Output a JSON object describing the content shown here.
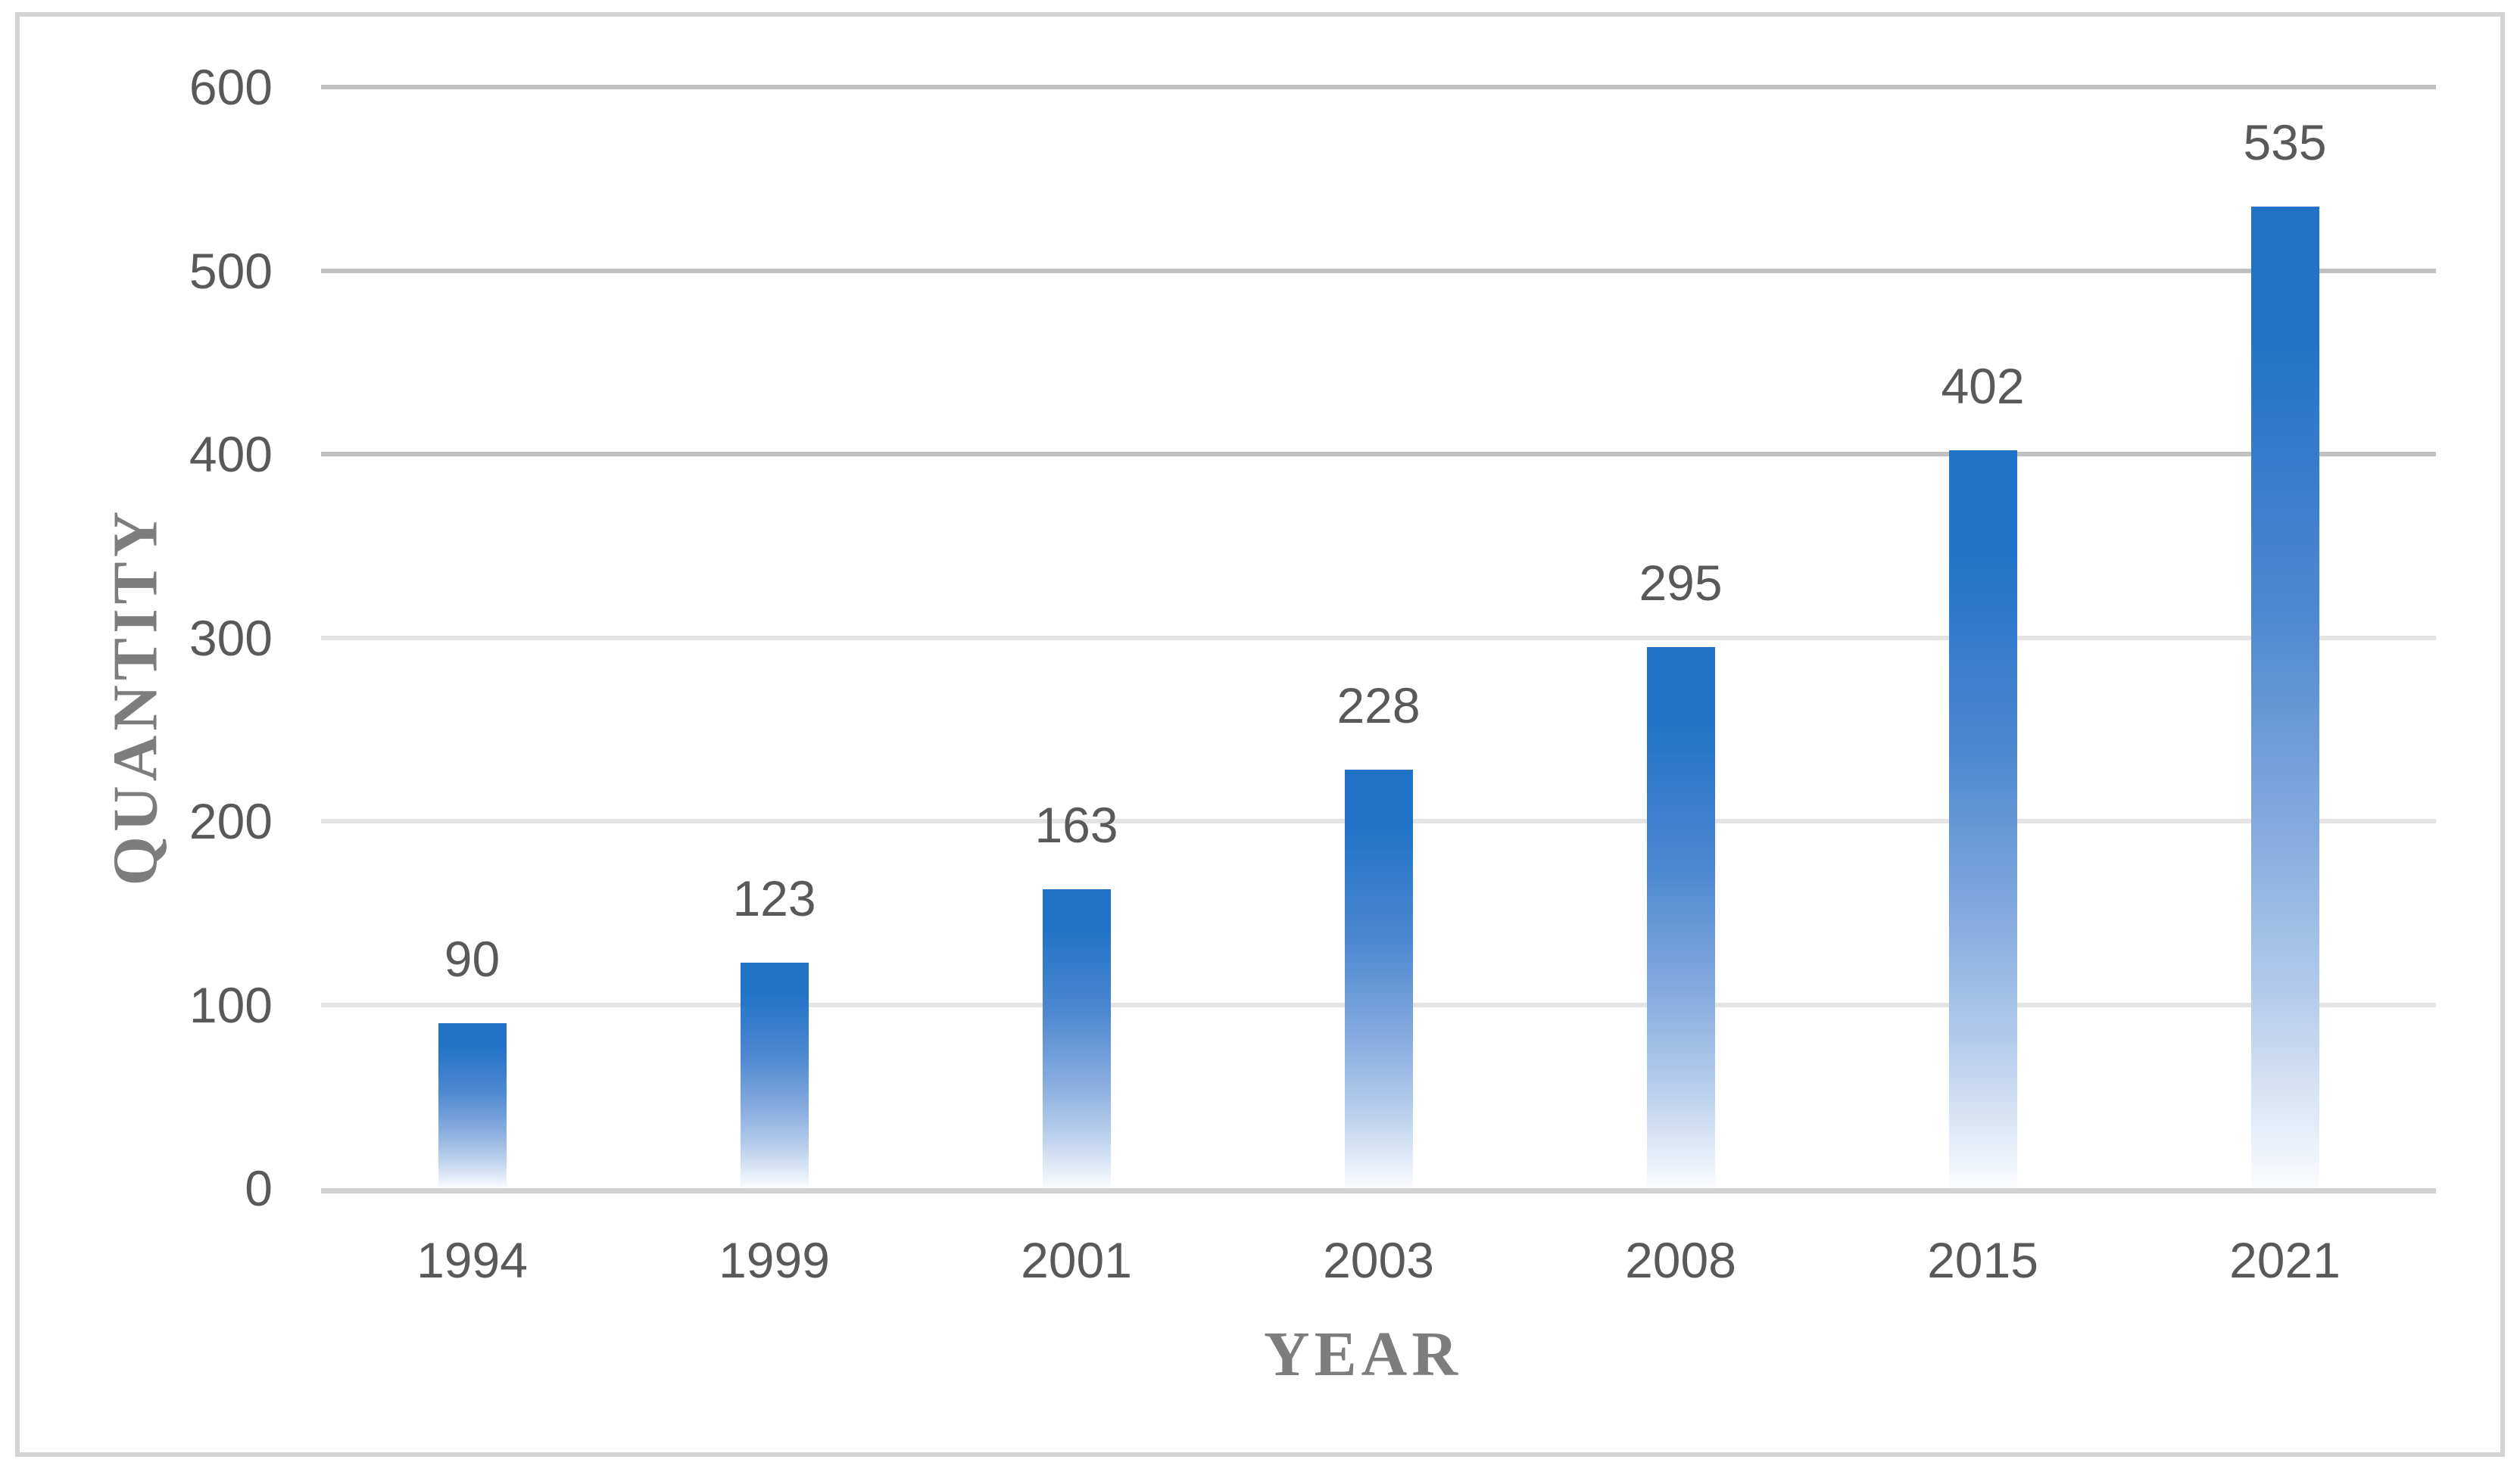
{
  "chart_data": {
    "type": "bar",
    "title": "",
    "categories": [
      "1994",
      "1999",
      "2001",
      "2003",
      "2008",
      "2015",
      "2021"
    ],
    "values": [
      90,
      123,
      163,
      228,
      295,
      402,
      535
    ],
    "data_labels": [
      "90",
      "123",
      "163",
      "228",
      "295",
      "402",
      "535"
    ],
    "xlabel": "YEAR",
    "ylabel": "QUANTITY",
    "ylim": [
      0,
      600
    ],
    "yticks": [
      0,
      100,
      200,
      300,
      400,
      500,
      600
    ],
    "ytick_labels": [
      "0",
      "100",
      "200",
      "300",
      "400",
      "500",
      "600"
    ],
    "grid": true,
    "legend": false,
    "colors": {
      "bar_gradient_top": "#2273c8",
      "bar_gradient_upper_mid": "#4f89d1",
      "bar_gradient_mid": "#85abdf",
      "bar_gradient_lower": "#b9cfec",
      "bar_gradient_bottom": "#fbfcfe",
      "tick_label": "#595959",
      "data_label": "#595959",
      "axis_title": "#7d7d7d",
      "gridline_dark": "#c0c0c0",
      "gridline_light": "#e4e4e4",
      "baseline": "#d2d2d2",
      "frame_border": "#d4d4d4"
    }
  }
}
